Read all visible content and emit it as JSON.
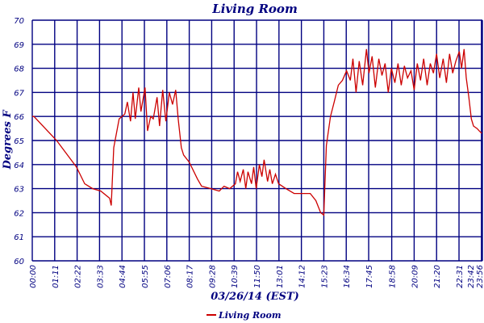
{
  "chart_data": {
    "type": "line",
    "title": "Living Room",
    "xlabel": "03/26/14 (EST)",
    "ylabel": "Degrees F",
    "ylim": [
      60,
      70
    ],
    "xlim_minutes": [
      0,
      1425
    ],
    "yticks": [
      60,
      61,
      62,
      63,
      64,
      65,
      66,
      67,
      68,
      69,
      70
    ],
    "xtick_minutes": [
      0,
      71,
      142,
      213,
      284,
      355,
      426,
      497,
      568,
      639,
      710,
      781,
      852,
      923,
      994,
      1065,
      1138,
      1209,
      1280,
      1351,
      1422,
      1436
    ],
    "xtick_labels": [
      "00:00",
      "01:11",
      "02:22",
      "03:33",
      "04:44",
      "05:55",
      "07:06",
      "08:17",
      "09:28",
      "10:39",
      "11:50",
      "13:01",
      "14:12",
      "15:23",
      "16:34",
      "17:45",
      "18:58",
      "20:09",
      "21:20",
      "22:31",
      "23:42",
      "23:56"
    ],
    "grid": true,
    "legend": {
      "position": "bottom-center",
      "entries": [
        "Living Room"
      ]
    },
    "colors": {
      "series": "#cc0000",
      "grid": "#000080",
      "text": "#000080"
    },
    "series": [
      {
        "name": "Living Room",
        "x_minutes": [
          0,
          5,
          77,
          140,
          166,
          191,
          217,
          245,
          250,
          258,
          275,
          293,
          301,
          311,
          319,
          326,
          337,
          344,
          357,
          365,
          375,
          383,
          395,
          403,
          413,
          423,
          434,
          444,
          454,
          462,
          472,
          479,
          497,
          523,
          536,
          566,
          592,
          607,
          625,
          643,
          650,
          658,
          668,
          676,
          683,
          694,
          701,
          709,
          719,
          727,
          734,
          745,
          752,
          760,
          770,
          780,
          803,
          829,
          854,
          880,
          898,
          913,
          923,
          926,
          931,
          944,
          956,
          969,
          982,
          995,
          1007,
          1015,
          1025,
          1035,
          1046,
          1058,
          1066,
          1076,
          1086,
          1097,
          1107,
          1117,
          1127,
          1137,
          1148,
          1158,
          1168,
          1178,
          1188,
          1199,
          1209,
          1219,
          1229,
          1239,
          1250,
          1260,
          1270,
          1280,
          1290,
          1301,
          1311,
          1321,
          1331,
          1341,
          1352,
          1359,
          1367,
          1374,
          1382,
          1390,
          1397,
          1408,
          1415,
          1423
        ],
        "values": [
          66.0,
          66.0,
          65.0,
          63.9,
          63.2,
          63.0,
          62.9,
          62.6,
          62.3,
          64.7,
          65.9,
          66.1,
          66.6,
          65.8,
          67.0,
          65.9,
          67.2,
          66.2,
          67.2,
          65.4,
          66.0,
          65.9,
          66.8,
          65.6,
          67.1,
          65.8,
          67.0,
          66.5,
          67.1,
          65.9,
          64.7,
          64.4,
          64.1,
          63.4,
          63.1,
          63.0,
          62.9,
          63.1,
          63.0,
          63.2,
          63.7,
          63.3,
          63.8,
          63.0,
          63.7,
          63.2,
          63.9,
          63.0,
          64.0,
          63.5,
          64.2,
          63.3,
          63.8,
          63.2,
          63.6,
          63.2,
          63.0,
          62.8,
          62.8,
          62.8,
          62.5,
          62.0,
          61.9,
          63.0,
          64.8,
          66.0,
          66.6,
          67.3,
          67.5,
          67.9,
          67.5,
          68.4,
          67.0,
          68.3,
          67.3,
          68.8,
          67.8,
          68.5,
          67.2,
          68.4,
          67.7,
          68.2,
          67.0,
          68.0,
          67.4,
          68.2,
          67.3,
          68.1,
          67.6,
          67.9,
          67.1,
          68.2,
          67.5,
          68.4,
          67.3,
          68.2,
          67.8,
          68.6,
          67.6,
          68.4,
          67.4,
          68.6,
          67.8,
          68.3,
          68.7,
          68.0,
          68.8,
          67.6,
          66.8,
          65.9,
          65.6,
          65.5,
          65.4,
          65.3
        ]
      }
    ]
  }
}
